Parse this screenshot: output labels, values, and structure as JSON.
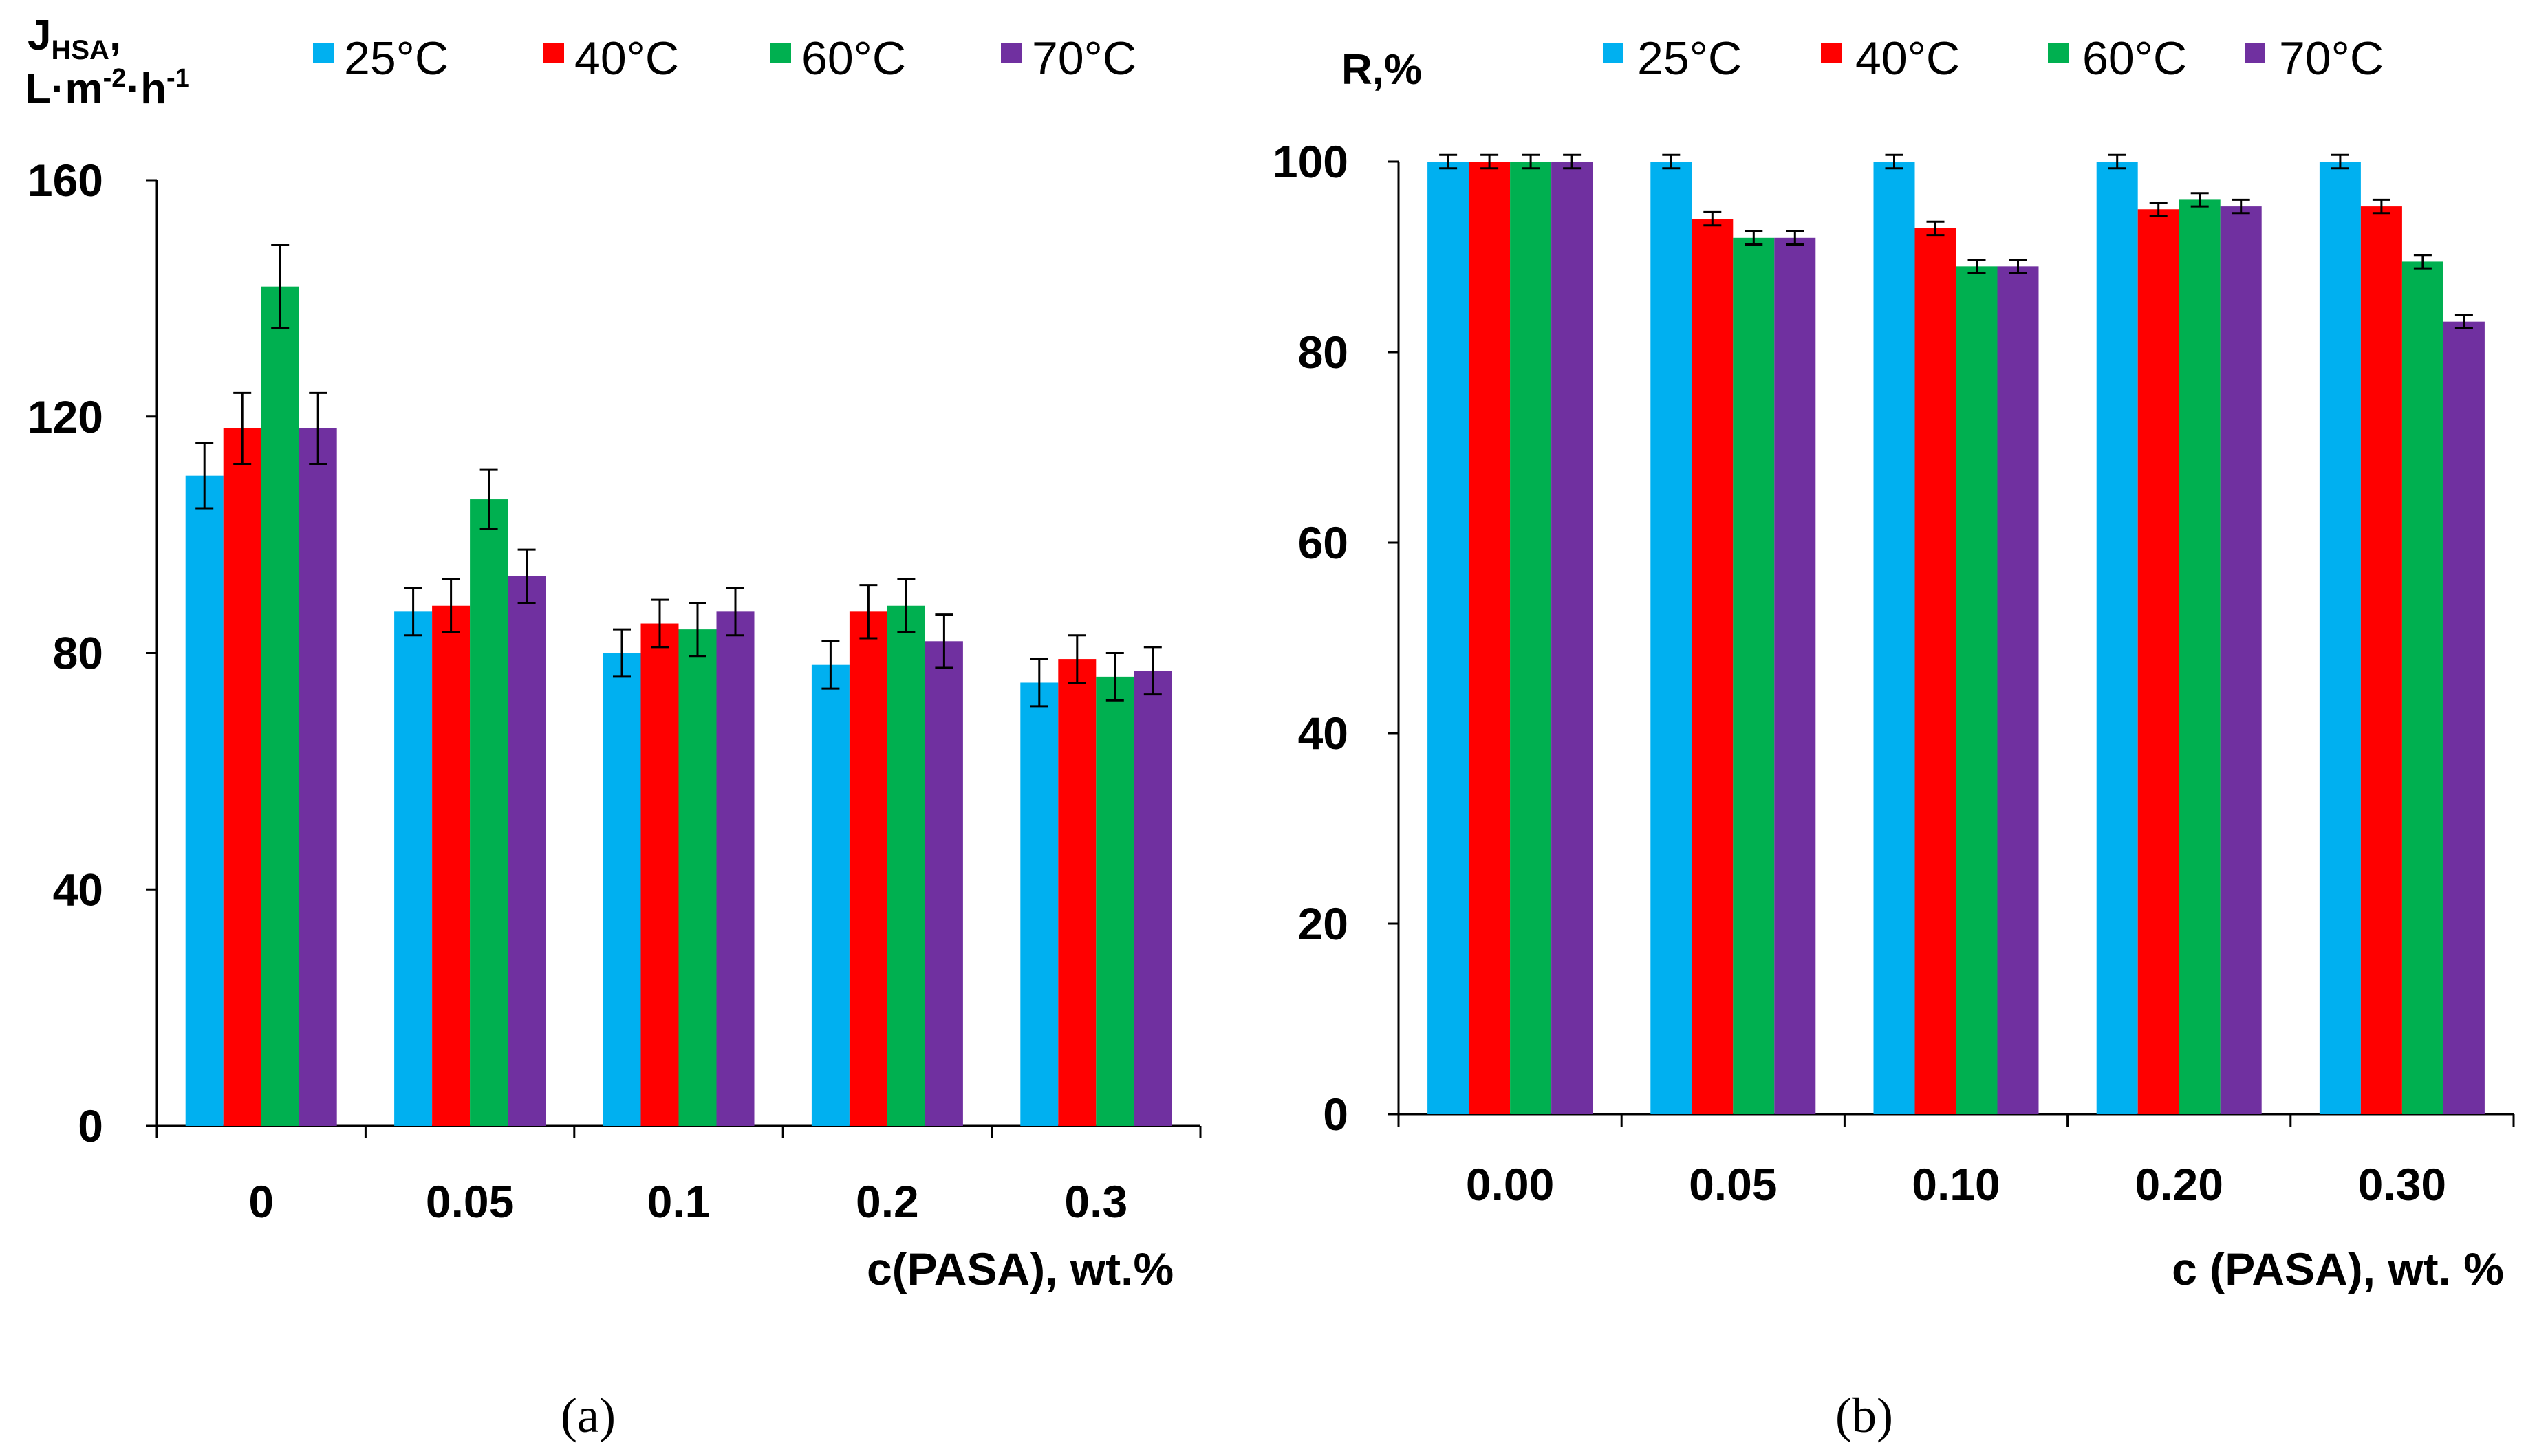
{
  "colors": [
    "#00b0f0",
    "#ff0000",
    "#00b050",
    "#7030a0"
  ],
  "chart_data": [
    {
      "type": "bar",
      "panel": "a",
      "caption": "(a)",
      "ylabel_main": "J",
      "ylabel_sub": "HSA",
      "ylabel_comma": ",",
      "ylabel_units": "L·m",
      "ylabel_exp1": "-2",
      "ylabel_mid": "·h",
      "ylabel_exp2": "-1",
      "xlabel": "c(PASA), wt.%",
      "categories": [
        "0",
        "0.05",
        "0.1",
        "0.2",
        "0.3"
      ],
      "ylim": [
        0,
        160
      ],
      "yticks": [
        "0",
        "40",
        "80",
        "120",
        "160"
      ],
      "series": [
        {
          "name": "25°C",
          "values": [
            110,
            87,
            80,
            78,
            75
          ],
          "errors": [
            5.5,
            4,
            4,
            4,
            4
          ]
        },
        {
          "name": "40°C",
          "values": [
            118,
            88,
            85,
            87,
            79
          ],
          "errors": [
            6,
            4.5,
            4,
            4.5,
            4
          ]
        },
        {
          "name": "60°C",
          "values": [
            142,
            106,
            84,
            88,
            76
          ],
          "errors": [
            7,
            5,
            4.5,
            4.5,
            4
          ]
        },
        {
          "name": "70°C",
          "values": [
            118,
            93,
            87,
            82,
            77
          ],
          "errors": [
            6,
            4.5,
            4,
            4.5,
            4
          ]
        }
      ]
    },
    {
      "type": "bar",
      "panel": "b",
      "caption": "(b)",
      "ylabel": "R,%",
      "xlabel": "c (PASA), wt. %",
      "categories": [
        "0.00",
        "0.05",
        "0.10",
        "0.20",
        "0.30"
      ],
      "ylim": [
        0,
        100
      ],
      "yticks": [
        "0",
        "20",
        "40",
        "60",
        "80",
        "100"
      ],
      "series": [
        {
          "name": "25°C",
          "values": [
            100,
            100,
            100,
            100,
            100
          ],
          "errors": [
            0.7,
            0.7,
            0.7,
            0.7,
            0.7
          ]
        },
        {
          "name": "40°C",
          "values": [
            100,
            94,
            93,
            95,
            95.3
          ],
          "errors": [
            0.7,
            0.7,
            0.7,
            0.7,
            0.7
          ]
        },
        {
          "name": "60°C",
          "values": [
            100,
            92,
            89,
            96,
            89.5
          ],
          "errors": [
            0.7,
            0.7,
            0.7,
            0.7,
            0.7
          ]
        },
        {
          "name": "70°C",
          "values": [
            100,
            92,
            89,
            95.3,
            83.2
          ],
          "errors": [
            0.7,
            0.7,
            0.7,
            0.7,
            0.7
          ]
        }
      ]
    }
  ]
}
